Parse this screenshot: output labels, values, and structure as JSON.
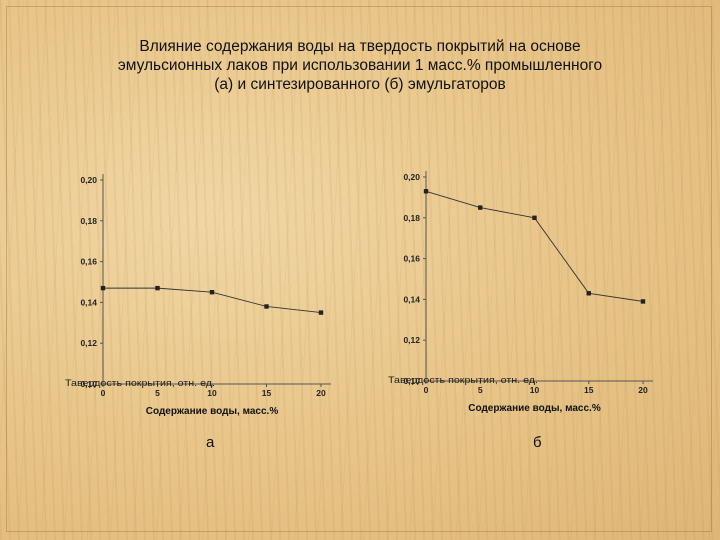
{
  "slide": {
    "title": "Влияние содержания воды на твердость покрытий на основе\nэмульсионных лаков при использовании 1 масс.% промышленного\n(а) и синтезированного (б) эмульгаторов"
  },
  "chart_data": [
    {
      "type": "line",
      "panel_label": "а",
      "xlabel": "Содержание воды, масс.%",
      "ylabel": "Тавердость покрытия, отн. ед.",
      "x": [
        0,
        5,
        10,
        15,
        20
      ],
      "series": [
        {
          "values": [
            0.147,
            0.147,
            0.145,
            0.138,
            0.135
          ]
        }
      ],
      "xticks": [
        "0",
        "5",
        "10",
        "15",
        "20"
      ],
      "yticks": [
        "0,10",
        "0,12",
        "0,14",
        "0,16",
        "0,18",
        "0,20"
      ],
      "xlim": [
        0,
        20
      ],
      "ylim": [
        0.1,
        0.2
      ],
      "grid": false,
      "line_color": "#333333"
    },
    {
      "type": "line",
      "panel_label": "б",
      "xlabel": "Содержание воды, масс.%",
      "ylabel": "Тавердость покрытия, отн. ед.",
      "x": [
        0,
        5,
        10,
        15,
        20
      ],
      "series": [
        {
          "values": [
            0.193,
            0.185,
            0.18,
            0.143,
            0.139
          ]
        }
      ],
      "xticks": [
        "0",
        "5",
        "10",
        "15",
        "20"
      ],
      "yticks": [
        "0,10",
        "0,12",
        "0,14",
        "0,16",
        "0,18",
        "0,20"
      ],
      "xlim": [
        0,
        20
      ],
      "ylim": [
        0.1,
        0.2
      ],
      "grid": false,
      "line_color": "#333333"
    }
  ]
}
